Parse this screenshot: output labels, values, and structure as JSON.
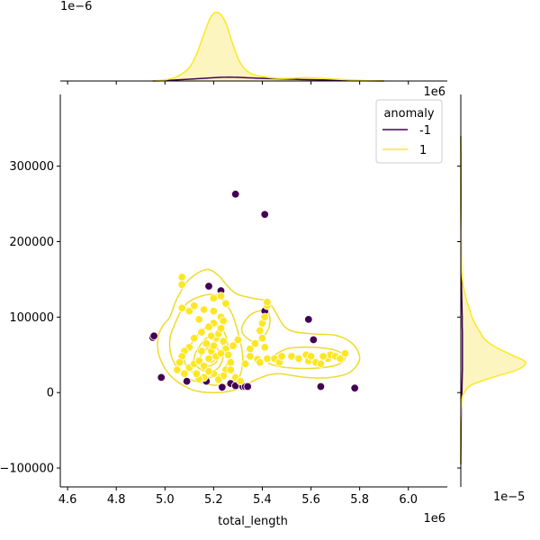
{
  "chart_data": {
    "type": "scatter",
    "xlabel": "total_length",
    "ylabel": "",
    "x_offset_label": "1e6",
    "y_offset_label": "1e6",
    "top_marginal_offset_label": "1e−6",
    "right_marginal_offset_label": "1e−5",
    "xlim": [
      4.57,
      6.16
    ],
    "ylim": [
      -125000,
      395000
    ],
    "x_ticks": [
      4.6,
      4.8,
      5.0,
      5.2,
      5.4,
      5.6,
      5.8,
      6.0
    ],
    "x_tick_labels": [
      "4.6",
      "4.8",
      "5.0",
      "5.2",
      "5.4",
      "5.6",
      "5.8",
      "6.0"
    ],
    "y_ticks": [
      -100000,
      0,
      100000,
      200000,
      300000
    ],
    "y_tick_labels": [
      "−100000",
      "0",
      "100000",
      "200000",
      "300000"
    ],
    "grid": false,
    "legend": {
      "title": "anomaly",
      "placement": "top-right"
    },
    "colors": {
      "anomaly": "#440154",
      "normal": "#fde725",
      "contour": "#f0da2b",
      "fill": "#fdf3b0"
    },
    "series": [
      {
        "name": "-1",
        "color": "#440154",
        "points": [
          [
            4.95,
            73000
          ],
          [
            4.955,
            75000
          ],
          [
            4.985,
            20000
          ],
          [
            5.09,
            15000
          ],
          [
            5.17,
            15000
          ],
          [
            5.18,
            141000
          ],
          [
            5.23,
            135000
          ],
          [
            5.235,
            7000
          ],
          [
            5.27,
            12000
          ],
          [
            5.29,
            9000
          ],
          [
            5.29,
            263000
          ],
          [
            5.32,
            8000
          ],
          [
            5.33,
            8000
          ],
          [
            5.34,
            8000
          ],
          [
            5.41,
            236000
          ],
          [
            5.41,
            108000
          ],
          [
            5.59,
            97000
          ],
          [
            5.61,
            70000
          ],
          [
            5.64,
            8000
          ],
          [
            5.78,
            6000
          ]
        ]
      },
      {
        "name": "1",
        "color": "#fde725",
        "points": [
          [
            5.07,
            153000
          ],
          [
            5.07,
            143000
          ],
          [
            5.07,
            112000
          ],
          [
            5.1,
            108000
          ],
          [
            5.12,
            115000
          ],
          [
            5.14,
            97000
          ],
          [
            5.16,
            110000
          ],
          [
            5.2,
            108000
          ],
          [
            5.2,
            125000
          ],
          [
            5.23,
            128000
          ],
          [
            5.25,
            118000
          ],
          [
            5.23,
            100000
          ],
          [
            5.24,
            95000
          ],
          [
            5.2,
            92000
          ],
          [
            5.18,
            87000
          ],
          [
            5.15,
            80000
          ],
          [
            5.12,
            72000
          ],
          [
            5.1,
            60000
          ],
          [
            5.08,
            55000
          ],
          [
            5.07,
            48000
          ],
          [
            5.06,
            40000
          ],
          [
            5.05,
            30000
          ],
          [
            5.08,
            25000
          ],
          [
            5.1,
            33000
          ],
          [
            5.12,
            38000
          ],
          [
            5.14,
            42000
          ],
          [
            5.16,
            35000
          ],
          [
            5.18,
            45000
          ],
          [
            5.19,
            55000
          ],
          [
            5.2,
            62000
          ],
          [
            5.21,
            72000
          ],
          [
            5.22,
            78000
          ],
          [
            5.23,
            85000
          ],
          [
            5.24,
            68000
          ],
          [
            5.25,
            58000
          ],
          [
            5.26,
            50000
          ],
          [
            5.27,
            40000
          ],
          [
            5.25,
            30000
          ],
          [
            5.24,
            22000
          ],
          [
            5.22,
            17000
          ],
          [
            5.2,
            25000
          ],
          [
            5.18,
            28000
          ],
          [
            5.16,
            20000
          ],
          [
            5.14,
            18000
          ],
          [
            5.13,
            25000
          ],
          [
            5.15,
            55000
          ],
          [
            5.17,
            65000
          ],
          [
            5.19,
            75000
          ],
          [
            5.21,
            48000
          ],
          [
            5.23,
            52000
          ],
          [
            5.28,
            62000
          ],
          [
            5.3,
            70000
          ],
          [
            5.27,
            30000
          ],
          [
            5.29,
            20000
          ],
          [
            5.31,
            15000
          ],
          [
            5.33,
            38000
          ],
          [
            5.35,
            58000
          ],
          [
            5.35,
            48000
          ],
          [
            5.37,
            65000
          ],
          [
            5.38,
            44000
          ],
          [
            5.39,
            82000
          ],
          [
            5.4,
            92000
          ],
          [
            5.41,
            100000
          ],
          [
            5.42,
            115000
          ],
          [
            5.42,
            120000
          ],
          [
            5.4,
            72000
          ],
          [
            5.41,
            60000
          ],
          [
            5.42,
            45000
          ],
          [
            5.39,
            40000
          ],
          [
            5.45,
            45000
          ],
          [
            5.47,
            40000
          ],
          [
            5.48,
            48000
          ],
          [
            5.52,
            48000
          ],
          [
            5.55,
            45000
          ],
          [
            5.58,
            50000
          ],
          [
            5.59,
            42000
          ],
          [
            5.6,
            48000
          ],
          [
            5.62,
            40000
          ],
          [
            5.64,
            38000
          ],
          [
            5.67,
            45000
          ],
          [
            5.68,
            50000
          ],
          [
            5.7,
            48000
          ],
          [
            5.72,
            45000
          ],
          [
            5.74,
            52000
          ],
          [
            5.65,
            48000
          ]
        ]
      }
    ],
    "density_levels": [
      {
        "name": "outer",
        "x": [
          5.02,
          5.05,
          5.1,
          5.17,
          5.22,
          5.26,
          5.3,
          5.36,
          5.43,
          5.5,
          5.6,
          5.7,
          5.77,
          5.8,
          5.76,
          5.68,
          5.58,
          5.46,
          5.38,
          5.3,
          5.22,
          5.12,
          5.03,
          4.98,
          4.97,
          4.99
        ],
        "y": [
          100000,
          125000,
          150000,
          163000,
          155000,
          140000,
          130000,
          125000,
          118000,
          85000,
          78000,
          76000,
          65000,
          45000,
          27000,
          20000,
          20000,
          25000,
          18000,
          5000,
          0,
          3000,
          20000,
          45000,
          70000,
          88000
        ]
      },
      {
        "name": "mid-left",
        "x": [
          5.04,
          5.08,
          5.15,
          5.22,
          5.27,
          5.3,
          5.32,
          5.3,
          5.24,
          5.16,
          5.08,
          5.03,
          5.02
        ],
        "y": [
          90000,
          115000,
          128000,
          128000,
          108000,
          80000,
          45000,
          18000,
          10000,
          12000,
          22000,
          45000,
          70000
        ]
      },
      {
        "name": "mid-right",
        "x": [
          5.43,
          5.5,
          5.6,
          5.7,
          5.74,
          5.7,
          5.6,
          5.5,
          5.44,
          5.42
        ],
        "y": [
          45000,
          58000,
          60000,
          56000,
          46000,
          36000,
          32000,
          33000,
          37000,
          41000
        ]
      },
      {
        "name": "mid-upper",
        "x": [
          5.32,
          5.36,
          5.42,
          5.43,
          5.4,
          5.36,
          5.32
        ],
        "y": [
          90000,
          105000,
          108000,
          90000,
          72000,
          68000,
          78000
        ]
      },
      {
        "name": "inner-1",
        "x": [
          5.1,
          5.15,
          5.21,
          5.25,
          5.26,
          5.23,
          5.17,
          5.11,
          5.08
        ],
        "y": [
          60000,
          82000,
          90000,
          75000,
          45000,
          25000,
          20000,
          28000,
          42000
        ]
      },
      {
        "name": "inner-2",
        "x": [
          5.13,
          5.17,
          5.22,
          5.24,
          5.22,
          5.17,
          5.13,
          5.12
        ],
        "y": [
          55000,
          72000,
          75000,
          52000,
          33000,
          28000,
          35000,
          45000
        ]
      },
      {
        "name": "inner-3",
        "x": [
          5.15,
          5.19,
          5.22,
          5.21,
          5.17,
          5.15
        ],
        "y": [
          50000,
          62000,
          55000,
          40000,
          35000,
          42000
        ]
      },
      {
        "name": "core",
        "x": [
          5.18,
          5.2,
          5.21,
          5.19,
          5.17
        ],
        "y": [
          46000,
          52000,
          46000,
          40000,
          43000
        ]
      }
    ],
    "marginal_top": {
      "axis_max": 3.3,
      "x": [
        4.95,
        5.0,
        5.05,
        5.1,
        5.13,
        5.16,
        5.19,
        5.22,
        5.25,
        5.28,
        5.31,
        5.35,
        5.4,
        5.46,
        5.52,
        5.58,
        5.64,
        5.7,
        5.76,
        5.82,
        5.9
      ],
      "normal": [
        0.0,
        0.05,
        0.2,
        0.6,
        1.2,
        2.1,
        2.9,
        3.05,
        2.6,
        1.6,
        0.8,
        0.35,
        0.2,
        0.12,
        0.12,
        0.15,
        0.12,
        0.08,
        0.05,
        0.02,
        0.0
      ],
      "anomaly": [
        0.0,
        0.02,
        0.05,
        0.08,
        0.1,
        0.12,
        0.14,
        0.16,
        0.17,
        0.17,
        0.16,
        0.14,
        0.12,
        0.1,
        0.08,
        0.06,
        0.05,
        0.04,
        0.03,
        0.01,
        0.0
      ]
    },
    "marginal_right": {
      "axis_max": 2.0,
      "y": [
        -95000,
        -40000,
        -10000,
        0,
        10000,
        20000,
        30000,
        40000,
        50000,
        60000,
        70000,
        80000,
        90000,
        100000,
        110000,
        120000,
        130000,
        145000,
        160000,
        190000,
        240000,
        300000,
        340000
      ],
      "normal": [
        0.0,
        0.0,
        0.03,
        0.1,
        0.3,
        0.9,
        1.6,
        1.85,
        1.45,
        1.0,
        0.7,
        0.55,
        0.42,
        0.32,
        0.25,
        0.18,
        0.12,
        0.06,
        0.03,
        0.01,
        0.0,
        0.0,
        0.0
      ],
      "anomaly": [
        0.0,
        0.01,
        0.02,
        0.03,
        0.035,
        0.04,
        0.045,
        0.045,
        0.045,
        0.045,
        0.045,
        0.045,
        0.04,
        0.04,
        0.035,
        0.03,
        0.025,
        0.02,
        0.015,
        0.01,
        0.006,
        0.004,
        0.0
      ]
    }
  }
}
